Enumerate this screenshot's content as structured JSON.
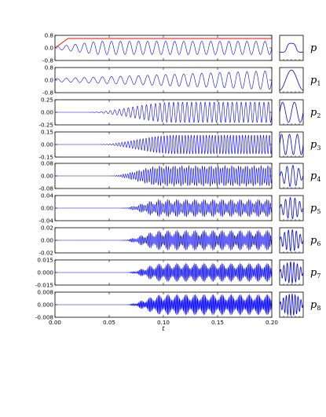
{
  "chart_data": {
    "type": "line",
    "xlabel": "t",
    "xlim": [
      0,
      0.2
    ],
    "xticks": [
      0,
      0.05,
      0.1,
      0.15,
      0.2
    ],
    "xtick_labels": [
      "0.00",
      "0.05",
      "0.10",
      "0.15",
      "0.20"
    ],
    "colors": {
      "signal": "#0000ff",
      "envelope": "#ff0000",
      "axes": "#000000"
    },
    "panels": [
      {
        "label": "p",
        "sub": "",
        "ylim": [
          -0.8,
          0.8
        ],
        "yticks": [
          "0.8",
          "0.0",
          "-0.8"
        ],
        "kind": "wave",
        "cycles": 24,
        "amp_start": 0.08,
        "amp_end": 0.42,
        "onset": 0.0,
        "ramp": 0.04,
        "envelope": {
          "level": 0.75,
          "rise_end": 0.012
        },
        "inset": "top-hat"
      },
      {
        "label": "p",
        "sub": "1",
        "ylim": [
          -0.8,
          0.8
        ],
        "yticks": [
          "0.8",
          "0.0",
          "-0.8"
        ],
        "kind": "wave",
        "cycles": 24,
        "amp_start": 0.1,
        "amp_end": 0.6,
        "onset": 0.0,
        "ramp": 0.2,
        "inset_cycles": 1
      },
      {
        "label": "p",
        "sub": "2",
        "ylim": [
          -0.25,
          0.25
        ],
        "yticks": [
          "0.25",
          "0.00",
          "-0.25"
        ],
        "kind": "grow",
        "cycles": 48,
        "amp_max": 0.2,
        "onset": 0.03,
        "saturate": 0.11,
        "inset_cycles": 2
      },
      {
        "label": "p",
        "sub": "3",
        "ylim": [
          -0.15,
          0.15
        ],
        "yticks": [
          "0.15",
          "0.00",
          "-0.15"
        ],
        "kind": "grow",
        "cycles": 72,
        "amp_max": 0.11,
        "onset": 0.04,
        "saturate": 0.11,
        "inset_cycles": 3
      },
      {
        "label": "p",
        "sub": "4",
        "ylim": [
          -0.08,
          0.08
        ],
        "yticks": [
          "0.08",
          "0.00",
          "-0.08"
        ],
        "kind": "beat",
        "cycles": 96,
        "amp_max": 0.065,
        "onset": 0.05,
        "saturate": 0.1,
        "beats": 30,
        "beat_depth": 0.3,
        "inset_cycles": 4
      },
      {
        "label": "p",
        "sub": "5",
        "ylim": [
          -0.04,
          0.04
        ],
        "yticks": [
          "0.04",
          "0.00",
          "-0.04"
        ],
        "kind": "beat",
        "cycles": 120,
        "amp_max": 0.028,
        "onset": 0.06,
        "saturate": 0.1,
        "beats": 24,
        "beat_depth": 0.55,
        "inset_cycles": 5
      },
      {
        "label": "p",
        "sub": "6",
        "ylim": [
          -0.02,
          0.02
        ],
        "yticks": [
          "0.02",
          "0.00",
          "-0.02"
        ],
        "kind": "beat",
        "cycles": 144,
        "amp_max": 0.016,
        "onset": 0.06,
        "saturate": 0.1,
        "beats": 24,
        "beat_depth": 0.6,
        "inset_cycles": 6
      },
      {
        "label": "p",
        "sub": "7",
        "ylim": [
          -0.015,
          0.015
        ],
        "yticks": [
          "0.015",
          "0.000",
          "-0.015"
        ],
        "kind": "beat",
        "cycles": 168,
        "amp_max": 0.011,
        "onset": 0.065,
        "saturate": 0.1,
        "beats": 24,
        "beat_depth": 0.6,
        "inset_cycles": 7
      },
      {
        "label": "p",
        "sub": "8",
        "ylim": [
          -0.008,
          0.008
        ],
        "yticks": [
          "0.008",
          "0.000",
          "-0.008"
        ],
        "kind": "beat",
        "cycles": 192,
        "amp_max": 0.0065,
        "onset": 0.065,
        "saturate": 0.1,
        "beats": 24,
        "beat_depth": 0.6,
        "inset_cycles": 8
      }
    ]
  }
}
